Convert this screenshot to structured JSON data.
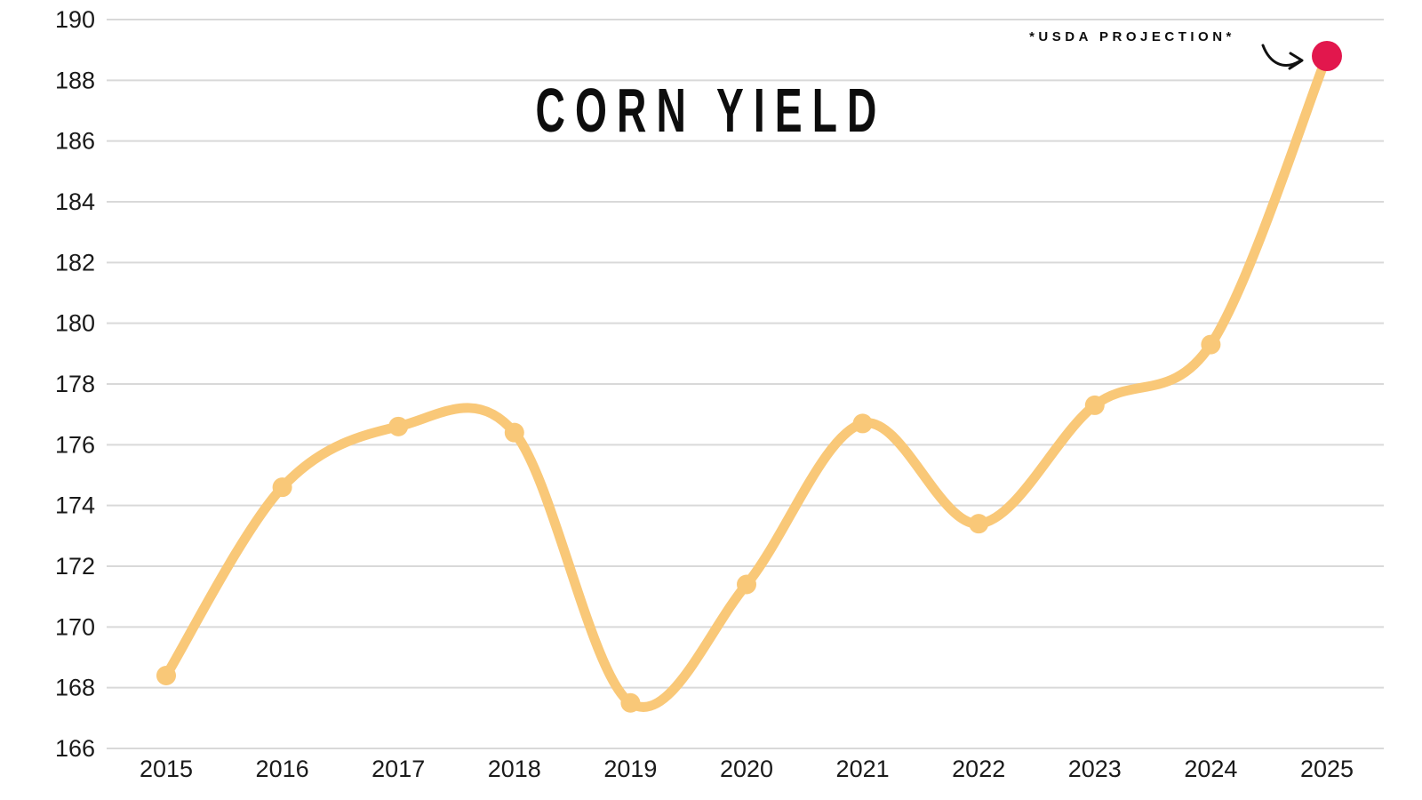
{
  "page": {
    "background": "#ffffff"
  },
  "chart_data": {
    "type": "line",
    "title": "CORN YIELD",
    "x": [
      2015,
      2016,
      2017,
      2018,
      2019,
      2020,
      2021,
      2022,
      2023,
      2024,
      2025
    ],
    "series": [
      {
        "name": "Corn yield",
        "values": [
          168.4,
          174.6,
          176.6,
          176.4,
          167.5,
          171.4,
          176.7,
          173.4,
          177.3,
          179.3,
          188.8
        ]
      }
    ],
    "projection": {
      "text": "*USDA PROJECTION*",
      "year": 2025,
      "value": 188.8
    },
    "ylim": [
      166,
      190
    ],
    "ytick_step": 2,
    "yticks": [
      166,
      168,
      170,
      172,
      174,
      176,
      178,
      180,
      182,
      184,
      186,
      188,
      190
    ],
    "grid": "horizontal",
    "legend": "none",
    "colors": {
      "line": "#F9C878",
      "point": "#F9C878",
      "projection_point": "#E2174D",
      "grid": "#D9D9D9",
      "tick_text": "#1a1a1a",
      "title_text": "#0d0d0d",
      "annotation_text": "#0d0d0d",
      "arrow": "#111111"
    }
  }
}
